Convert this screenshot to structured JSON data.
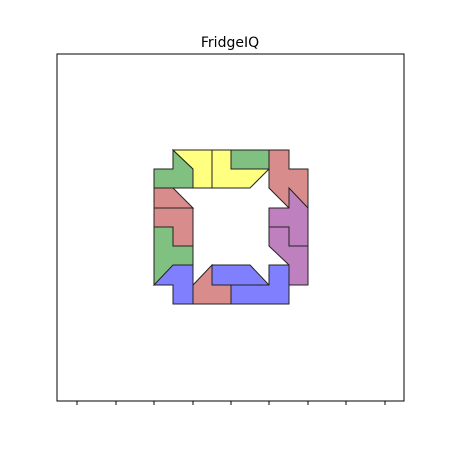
{
  "title": "FridgeIQ",
  "colors": {
    "green": "#80c080",
    "yellow": "#ffff80",
    "red": "#d98c8c",
    "purple": "#bf80bf",
    "blue": "#8080ff",
    "outline": "#222222"
  }
}
